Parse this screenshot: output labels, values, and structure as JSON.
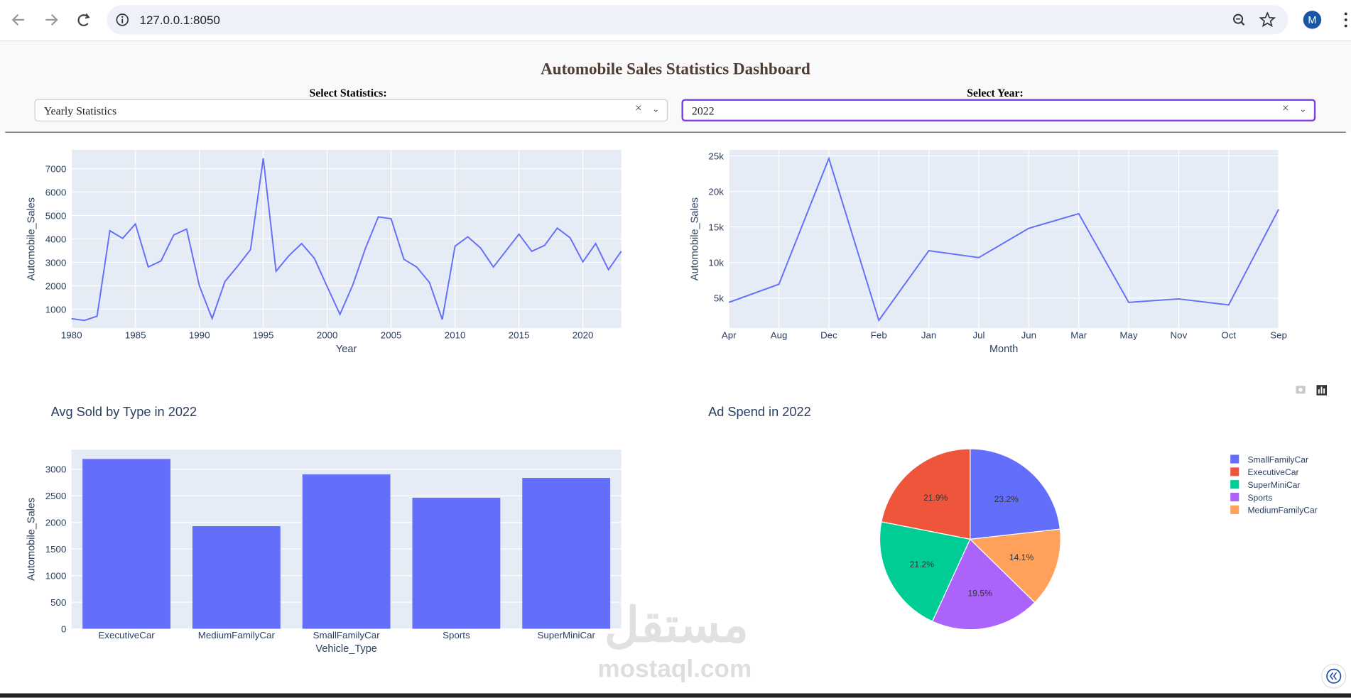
{
  "browser": {
    "url": "127.0.0.1:8050",
    "avatar": "M"
  },
  "dashboard": {
    "title": "Automobile Sales Statistics Dashboard",
    "dropdowns": [
      {
        "label": "Select Statistics:",
        "value": "Yearly Statistics"
      },
      {
        "label": "Select Year:",
        "value": "2022"
      }
    ]
  },
  "watermark": {
    "arabic": "مستقل",
    "latin": "mostaql.com"
  },
  "chart_data": [
    {
      "type": "line",
      "xlabel": "Year",
      "ylabel": "Automobile_Sales",
      "color": "#636efa",
      "grid": true,
      "x": [
        1980,
        1981,
        1982,
        1983,
        1984,
        1985,
        1986,
        1987,
        1988,
        1989,
        1990,
        1991,
        1992,
        1993,
        1994,
        1995,
        1996,
        1997,
        1998,
        1999,
        2000,
        2001,
        2002,
        2003,
        2004,
        2005,
        2006,
        2007,
        2008,
        2009,
        2010,
        2011,
        2012,
        2013,
        2014,
        2015,
        2016,
        2017,
        2018,
        2019,
        2020,
        2021,
        2022,
        2023
      ],
      "values": [
        595,
        520,
        700,
        4350,
        4020,
        4640,
        2800,
        3060,
        4170,
        4420,
        2000,
        600,
        2180,
        2840,
        3540,
        7440,
        2620,
        3280,
        3800,
        3170,
        1960,
        780,
        2030,
        3610,
        4940,
        4860,
        3130,
        2800,
        2140,
        560,
        3690,
        4090,
        3610,
        2800,
        3500,
        4200,
        3470,
        3720,
        4460,
        4050,
        3020,
        3800,
        2690,
        3470
      ],
      "xlim": [
        1980,
        2023
      ],
      "xticks": [
        1980,
        1985,
        1990,
        1995,
        2000,
        2005,
        2010,
        2015,
        2020
      ],
      "ylim": [
        190,
        7800
      ],
      "yticks": [
        1000,
        2000,
        3000,
        4000,
        5000,
        6000,
        7000
      ]
    },
    {
      "type": "line",
      "xlabel": "Month",
      "ylabel": "Automobile_Sales",
      "color": "#636efa",
      "grid": true,
      "categories": [
        "Apr",
        "Aug",
        "Dec",
        "Feb",
        "Jan",
        "Jul",
        "Jun",
        "Mar",
        "May",
        "Nov",
        "Oct",
        "Sep"
      ],
      "values": [
        4390,
        6940,
        24640,
        1850,
        11660,
        10690,
        14810,
        16870,
        4390,
        4880,
        4030,
        17480
      ],
      "ylim": [
        760,
        25850
      ],
      "yticks": [
        {
          "value": 5000,
          "label": "5k"
        },
        {
          "value": 10000,
          "label": "10k"
        },
        {
          "value": 15000,
          "label": "15k"
        },
        {
          "value": 20000,
          "label": "20k"
        },
        {
          "value": 25000,
          "label": "25k"
        }
      ]
    },
    {
      "type": "bar",
      "title": "Avg Sold by Type in 2022",
      "xlabel": "Vehicle_Type",
      "ylabel": "Automobile_Sales",
      "color": "#636efa",
      "grid": true,
      "categories": [
        "ExecutiveCar",
        "MediumFamilyCar",
        "SmallFamilyCar",
        "Sports",
        "SuperMiniCar"
      ],
      "values": [
        3194,
        1930,
        2903,
        2465,
        2838
      ],
      "ylim": [
        0,
        3370
      ],
      "yticks": [
        0,
        500,
        1000,
        1500,
        2000,
        2500,
        3000
      ]
    },
    {
      "type": "pie",
      "title": "Ad Spend in 2022",
      "categories": [
        "SmallFamilyCar",
        "ExecutiveCar",
        "SuperMiniCar",
        "Sports",
        "MediumFamilyCar"
      ],
      "values": [
        23.2,
        21.9,
        21.2,
        19.5,
        14.1
      ],
      "value_labels": [
        "23.2%",
        "21.9%",
        "21.2%",
        "19.5%",
        "14.1%"
      ],
      "colors": [
        "#636efa",
        "#EF553B",
        "#00cc96",
        "#ab63fa",
        "#FFA15A"
      ]
    }
  ]
}
